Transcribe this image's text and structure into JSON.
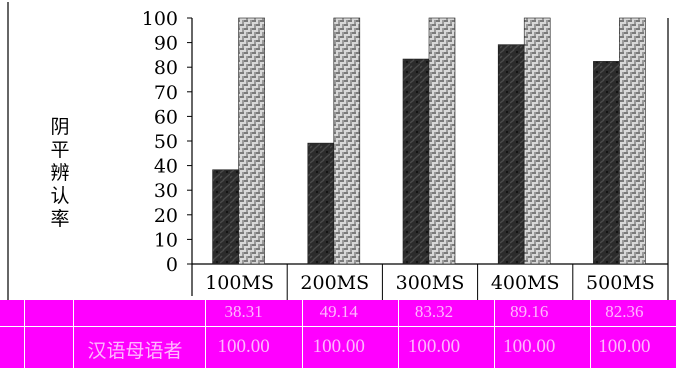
{
  "chart_data": {
    "type": "bar",
    "ylabel": "阴平辨认率",
    "ylim": [
      0,
      100
    ],
    "yticks": [
      0,
      10,
      20,
      30,
      40,
      50,
      60,
      70,
      80,
      90,
      100
    ],
    "categories": [
      "100MS",
      "200MS",
      "300MS",
      "400MS",
      "500MS"
    ],
    "series": [
      {
        "name": "",
        "values": [
          38.31,
          49.14,
          83.32,
          89.16,
          82.36
        ],
        "value_labels": [
          "38.31",
          "49.14",
          "83.32",
          "89.16",
          "82.36"
        ],
        "fill": "#2b2b2b"
      },
      {
        "name": "汉语母语者",
        "values": [
          100,
          100,
          100,
          100,
          100
        ],
        "value_labels": [
          "100.00",
          "100.00",
          "100.00",
          "100.00",
          "100.00"
        ],
        "fill": "#c4c4c4"
      }
    ],
    "grid": false,
    "legend": "table-below"
  },
  "colors": {
    "overlay": "#ff00ff",
    "overlay_text": "#ffb8ff"
  }
}
